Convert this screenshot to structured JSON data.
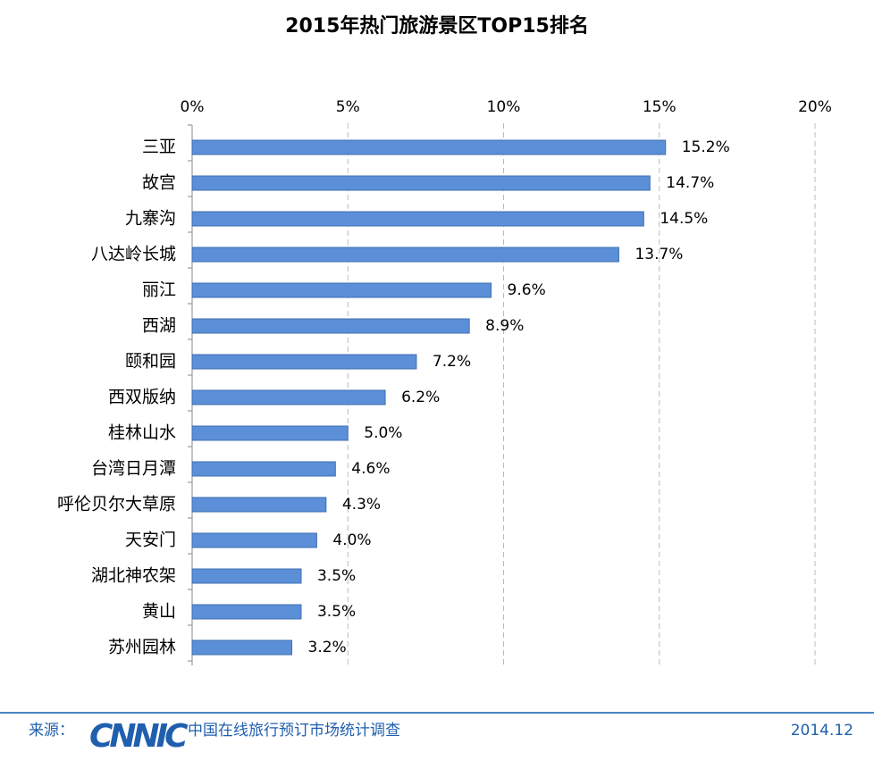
{
  "chart_data": {
    "type": "barh",
    "title": "2015年热门旅游景区TOP15排名",
    "categories": [
      "三亚",
      "故宫",
      "九寨沟",
      "八达岭长城",
      "丽江",
      "西湖",
      "颐和园",
      "西双版纳",
      "桂林山水",
      "台湾日月潭",
      "呼伦贝尔大草原",
      "天安门",
      "湖北神农架",
      "黄山",
      "苏州园林"
    ],
    "values": [
      15.2,
      14.7,
      14.5,
      13.7,
      9.6,
      8.9,
      7.2,
      6.2,
      5.0,
      4.6,
      4.3,
      4.0,
      3.5,
      3.5,
      3.2
    ],
    "value_labels": [
      "15.2%",
      "14.7%",
      "14.5%",
      "13.7%",
      "9.6%",
      "8.9%",
      "7.2%",
      "6.2%",
      "5.0%",
      "4.6%",
      "4.3%",
      "4.0%",
      "3.5%",
      "3.5%",
      "3.2%"
    ],
    "color": "#5b8fd8",
    "xlim": [
      0,
      20
    ],
    "xticks": [
      {
        "value": 0,
        "label": "0%"
      },
      {
        "value": 5,
        "label": "5%"
      },
      {
        "value": 10,
        "label": "10%"
      },
      {
        "value": 15,
        "label": "15%"
      },
      {
        "value": 20,
        "label": "20%"
      }
    ],
    "grid": true,
    "source_label": "来源：",
    "logo": "CNNIC",
    "source": "中国在线旅行预订市场统计调查",
    "date": "2014.12"
  }
}
